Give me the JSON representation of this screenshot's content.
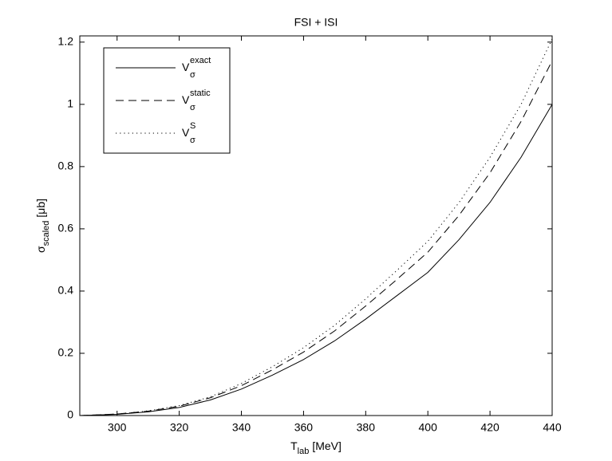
{
  "chart_data": {
    "type": "line",
    "title": "FSI + ISI",
    "xlabel": {
      "main": "T",
      "sub": "lab",
      "unit": "[MeV]"
    },
    "ylabel": {
      "main": "σ",
      "sub": "scaled",
      "unit": "[μb]"
    },
    "x": [
      288,
      290,
      300,
      310,
      320,
      330,
      340,
      350,
      360,
      370,
      380,
      390,
      400,
      410,
      420,
      430,
      440
    ],
    "series": [
      {
        "name": "V",
        "sub": "σ",
        "sup": "exact",
        "color": "#000000",
        "dash": "solid",
        "values": [
          0,
          0.0005,
          0.004,
          0.012,
          0.026,
          0.05,
          0.085,
          0.13,
          0.18,
          0.24,
          0.31,
          0.385,
          0.46,
          0.565,
          0.685,
          0.83,
          1.0
        ]
      },
      {
        "name": "V",
        "sub": "σ",
        "sup": "static",
        "color": "#000000",
        "dash": "dashed",
        "values": [
          0,
          0.0006,
          0.005,
          0.014,
          0.03,
          0.057,
          0.096,
          0.147,
          0.204,
          0.272,
          0.352,
          0.437,
          0.525,
          0.643,
          0.78,
          0.945,
          1.14
        ]
      },
      {
        "name": "V",
        "sub": "σ",
        "sup": "S",
        "color": "#000000",
        "dash": "dotted",
        "values": [
          0,
          0.0006,
          0.005,
          0.015,
          0.032,
          0.06,
          0.103,
          0.157,
          0.218,
          0.29,
          0.375,
          0.466,
          0.56,
          0.684,
          0.83,
          1.0,
          1.21
        ]
      }
    ],
    "xlim": [
      288,
      440
    ],
    "ylim": [
      0,
      1.22
    ],
    "xticks": [
      300,
      320,
      340,
      360,
      380,
      400,
      420,
      440
    ],
    "yticks": [
      0,
      0.2,
      0.4,
      0.6,
      0.8,
      1,
      1.2
    ],
    "legend": "upper-left"
  }
}
